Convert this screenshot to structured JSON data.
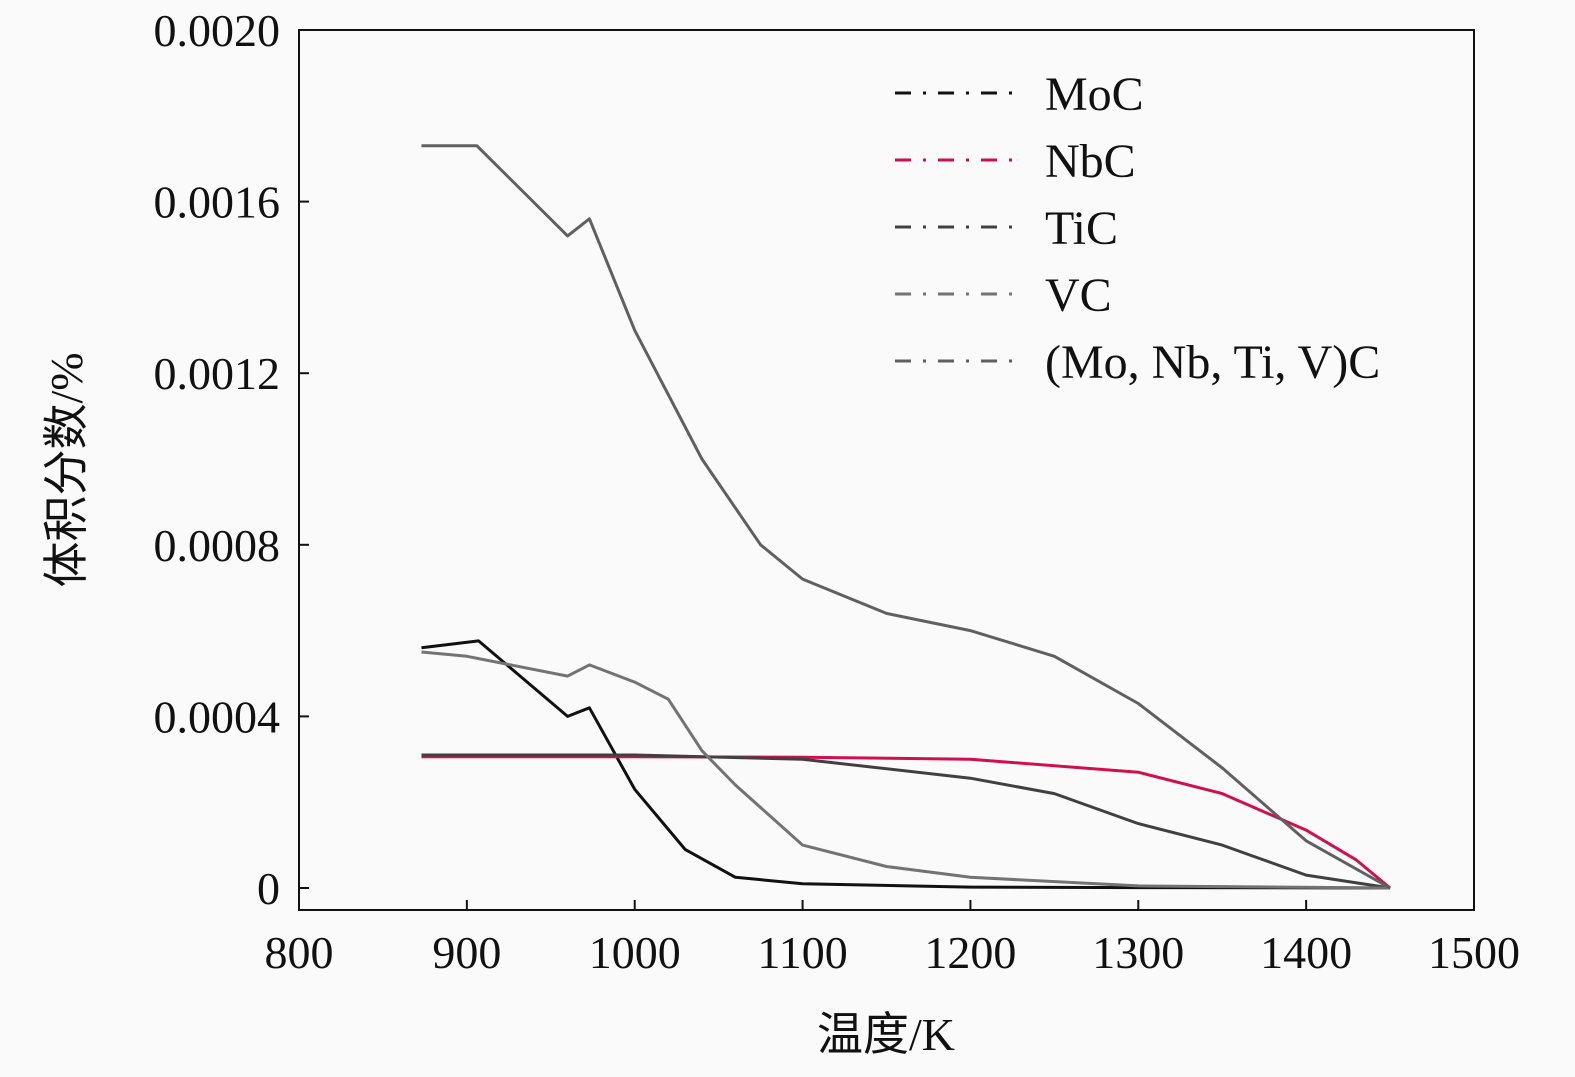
{
  "chart_data": {
    "type": "line",
    "title": "",
    "xlabel": "温度/K",
    "ylabel": "体积分数/%",
    "xlim": [
      800,
      1500
    ],
    "ylim": [
      0,
      0.002
    ],
    "xticks": [
      "800",
      "900",
      "1000",
      "1100",
      "1200",
      "1300",
      "1400",
      "1500"
    ],
    "yticks": [
      "0",
      "0.0004",
      "0.0008",
      "0.0012",
      "0.0016",
      "0.0020"
    ],
    "grid": false,
    "legend_position": "top-right",
    "line_style": "dash-dot",
    "series": [
      {
        "name": "MoC",
        "color": "#111111",
        "x": [
          873,
          907,
          960,
          973,
          1000,
          1030,
          1060,
          1100,
          1200,
          1300,
          1450
        ],
        "y": [
          0.00056,
          0.000576,
          0.0004,
          0.00042,
          0.00023,
          9e-05,
          2.5e-05,
          1e-05,
          2e-06,
          1e-06,
          0
        ]
      },
      {
        "name": "NbC",
        "color": "#d0104e",
        "x": [
          873,
          1000,
          1100,
          1200,
          1300,
          1350,
          1400,
          1430,
          1450
        ],
        "y": [
          0.000306,
          0.000306,
          0.000305,
          0.0003,
          0.00027,
          0.00022,
          0.000135,
          6.5e-05,
          0
        ]
      },
      {
        "name": "TiC",
        "color": "#404040",
        "x": [
          873,
          1000,
          1100,
          1200,
          1250,
          1300,
          1350,
          1400,
          1450
        ],
        "y": [
          0.00031,
          0.00031,
          0.0003,
          0.000256,
          0.00022,
          0.00015,
          0.0001,
          3e-05,
          0
        ]
      },
      {
        "name": "VC",
        "color": "#737373",
        "x": [
          873,
          900,
          960,
          973,
          1000,
          1020,
          1040,
          1060,
          1100,
          1150,
          1200,
          1300,
          1450
        ],
        "y": [
          0.00055,
          0.00054,
          0.000494,
          0.00052,
          0.00048,
          0.00044,
          0.00032,
          0.00024,
          0.0001,
          5e-05,
          2.5e-05,
          5e-06,
          0
        ]
      },
      {
        "name": "(Mo, Nb, Ti, V)C",
        "color": "#606060",
        "x": [
          873,
          906,
          960,
          973,
          1000,
          1040,
          1075,
          1100,
          1150,
          1200,
          1250,
          1300,
          1350,
          1400,
          1450
        ],
        "y": [
          0.00173,
          0.00173,
          0.00152,
          0.00156,
          0.0013,
          0.001,
          0.0008,
          0.00072,
          0.00064,
          0.0006,
          0.00054,
          0.00043,
          0.00028,
          0.00011,
          0
        ]
      }
    ]
  }
}
